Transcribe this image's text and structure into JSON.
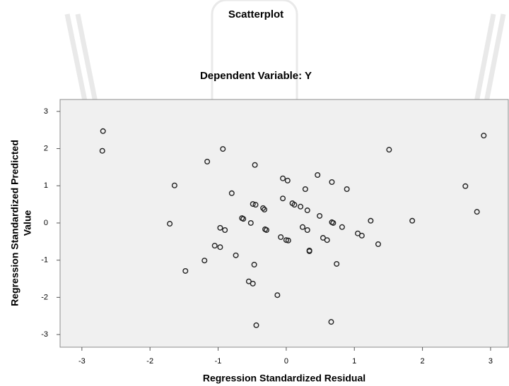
{
  "chart_data": {
    "type": "scatter",
    "title": "Scatterplot",
    "subtitle": "Dependent Variable: Y",
    "xlabel": "Regression Standardized Residual",
    "ylabel": [
      "Regression Standardized Predicted",
      "Value"
    ],
    "xlim": [
      -3.32,
      3.26
    ],
    "ylim": [
      -3.34,
      3.32
    ],
    "xticks": [
      -3,
      -2,
      -1,
      0,
      1,
      2,
      3
    ],
    "yticks": [
      -3,
      -2,
      -1,
      0,
      1,
      2,
      3
    ],
    "grid": false,
    "color": "#222222",
    "plot_background": "#f0f0f0",
    "x": [
      -2.69,
      -2.7,
      -0.93,
      -1.16,
      -0.46,
      -1.64,
      -0.05,
      0.02,
      0.46,
      0.67,
      0.28,
      0.89,
      -0.8,
      1.51,
      2.9,
      2.63,
      2.8,
      1.85,
      1.24,
      -1.71,
      -0.49,
      -0.45,
      -0.34,
      -0.32,
      -0.05,
      0.09,
      0.12,
      0.21,
      0.31,
      0.49,
      -0.65,
      -0.63,
      -0.52,
      -0.31,
      -0.29,
      -0.97,
      -0.9,
      0.24,
      0.31,
      0.67,
      0.69,
      0.82,
      -0.08,
      0.0,
      0.03,
      0.54,
      0.6,
      1.05,
      1.11,
      1.35,
      -1.05,
      -0.97,
      0.34,
      0.34,
      -0.74,
      -0.47,
      -1.2,
      -1.48,
      0.74,
      -0.55,
      -0.49,
      -0.13,
      -0.44,
      0.66
    ],
    "values": [
      2.47,
      1.94,
      1.99,
      1.65,
      1.56,
      1.01,
      1.2,
      1.14,
      1.29,
      1.1,
      0.91,
      0.91,
      0.8,
      1.97,
      2.35,
      0.99,
      0.3,
      0.06,
      0.06,
      -0.02,
      0.51,
      0.49,
      0.4,
      0.36,
      0.66,
      0.53,
      0.49,
      0.44,
      0.34,
      0.19,
      0.13,
      0.11,
      0.0,
      -0.17,
      -0.19,
      -0.13,
      -0.19,
      -0.11,
      -0.19,
      0.02,
      0.0,
      -0.11,
      -0.38,
      -0.46,
      -0.47,
      -0.4,
      -0.46,
      -0.28,
      -0.34,
      -0.57,
      -0.61,
      -0.65,
      -0.74,
      -0.76,
      -0.87,
      -1.12,
      -1.01,
      -1.29,
      -1.1,
      -1.57,
      -1.63,
      -1.94,
      -2.75,
      -2.66
    ]
  }
}
